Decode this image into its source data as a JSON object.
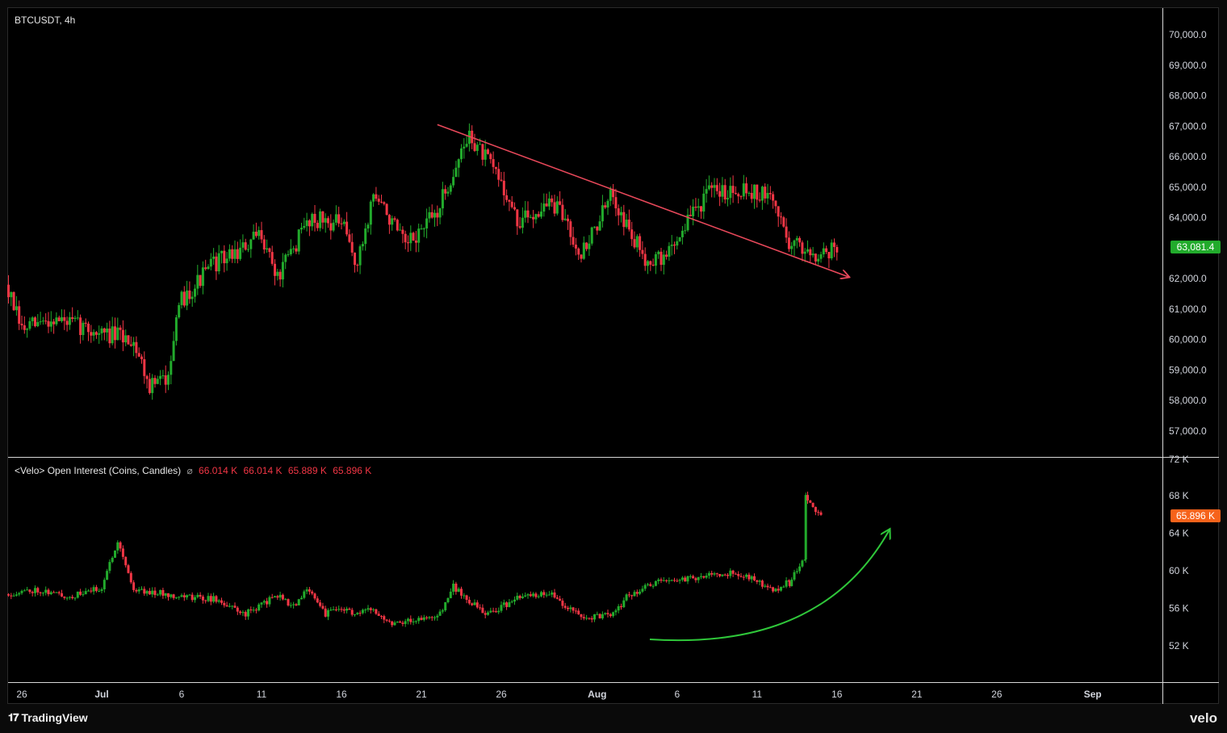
{
  "symbol_label": "BTCUSDT, 4h",
  "oi_label": "<Velo> Open Interest (Coins, Candles)",
  "oi_ohlc": [
    "66.014 K",
    "66.014 K",
    "65.889 K",
    "65.896 K"
  ],
  "price_tag": "63,081.4",
  "oi_tag": "65.896 K",
  "branding": {
    "left": "TradingView",
    "right": "velo"
  },
  "colors": {
    "up": "#089981",
    "up_bright": "#22ab2c",
    "down": "#f23645",
    "trend_line": "#e8485a",
    "curve_arrow": "#2fc73a",
    "price_tag_bg": "#22ab2c",
    "oi_tag_bg": "#f7631b"
  },
  "icons": {
    "eye": "eye-off-icon",
    "tv": "tradingview-logo-icon"
  },
  "chart_data": [
    {
      "type": "candlestick",
      "title": "BTCUSDT, 4h",
      "x_tick_labels": [
        "26",
        "Jul",
        "6",
        "11",
        "16",
        "21",
        "26",
        "Aug",
        "6",
        "11",
        "16",
        "21",
        "26",
        "Sep"
      ],
      "y_tick_labels": [
        "70,000.0",
        "69,000.0",
        "68,000.0",
        "67,000.0",
        "66,000.0",
        "65,000.0",
        "64,000.0",
        "62,000.0",
        "61,000.0",
        "60,000.0",
        "59,000.0",
        "58,000.0",
        "57,000.0"
      ],
      "ylim": [
        56500,
        70600
      ],
      "last_price": 63081.4,
      "series_path": [
        {
          "date": "Jun 25",
          "close": 61800
        },
        {
          "date": "Jun 26",
          "close": 60300
        },
        {
          "date": "Jun 28",
          "close": 60700
        },
        {
          "date": "Jul 1",
          "close": 60200
        },
        {
          "date": "Jul 3",
          "close": 60000
        },
        {
          "date": "Jul 4",
          "close": 58500
        },
        {
          "date": "Jul 5",
          "close": 58700
        },
        {
          "date": "Jul 6",
          "close": 61300
        },
        {
          "date": "Jul 8",
          "close": 62500
        },
        {
          "date": "Jul 10",
          "close": 63000
        },
        {
          "date": "Jul 11",
          "close": 63500
        },
        {
          "date": "Jul 12",
          "close": 62000
        },
        {
          "date": "Jul 14",
          "close": 64000
        },
        {
          "date": "Jul 16",
          "close": 63800
        },
        {
          "date": "Jul 17",
          "close": 62400
        },
        {
          "date": "Jul 18",
          "close": 64800
        },
        {
          "date": "Jul 19",
          "close": 64000
        },
        {
          "date": "Jul 20",
          "close": 63000
        },
        {
          "date": "Jul 22",
          "close": 64200
        },
        {
          "date": "Jul 23",
          "close": 65500
        },
        {
          "date": "Jul 24",
          "close": 66700
        },
        {
          "date": "Jul 26",
          "close": 65200
        },
        {
          "date": "Jul 27",
          "close": 63800
        },
        {
          "date": "Jul 29",
          "close": 64500
        },
        {
          "date": "Jul 30",
          "close": 64000
        },
        {
          "date": "Jul 31",
          "close": 62800
        },
        {
          "date": "Aug 2",
          "close": 64800
        },
        {
          "date": "Aug 3",
          "close": 63500
        },
        {
          "date": "Aug 4",
          "close": 62700
        },
        {
          "date": "Aug 5",
          "close": 62600
        },
        {
          "date": "Aug 6",
          "close": 63300
        },
        {
          "date": "Aug 7",
          "close": 64200
        },
        {
          "date": "Aug 8",
          "close": 64800
        },
        {
          "date": "Aug 10",
          "close": 65000
        },
        {
          "date": "Aug 11",
          "close": 64800
        },
        {
          "date": "Aug 12",
          "close": 64600
        },
        {
          "date": "Aug 13",
          "close": 63200
        },
        {
          "date": "Aug 14",
          "close": 63000
        },
        {
          "date": "Aug 15",
          "close": 62800
        },
        {
          "date": "Aug 16",
          "close": 63081.4
        }
      ],
      "trend_line": {
        "from": {
          "date": "Jul 22",
          "price": 67050
        },
        "to": {
          "date": "Aug 17",
          "price": 62000
        }
      }
    },
    {
      "type": "candlestick",
      "title": "<Velo> Open Interest (Coins, Candles)",
      "y_tick_labels": [
        "72 K",
        "68 K",
        "64 K",
        "60 K",
        "56 K",
        "52 K"
      ],
      "ylim": [
        48000,
        72000
      ],
      "last_value": "65.896 K",
      "series_path": [
        {
          "date": "Jun 25",
          "close": 57500
        },
        {
          "date": "Jun 27",
          "close": 58000
        },
        {
          "date": "Jun 29",
          "close": 57200
        },
        {
          "date": "Jul 1",
          "close": 58200
        },
        {
          "date": "Jul 2",
          "close": 63300
        },
        {
          "date": "Jul 3",
          "close": 58000
        },
        {
          "date": "Jul 6",
          "close": 57300
        },
        {
          "date": "Jul 8",
          "close": 57000
        },
        {
          "date": "Jul 10",
          "close": 55400
        },
        {
          "date": "Jul 12",
          "close": 57400
        },
        {
          "date": "Jul 13",
          "close": 56200
        },
        {
          "date": "Jul 14",
          "close": 58100
        },
        {
          "date": "Jul 15",
          "close": 55400
        },
        {
          "date": "Jul 16",
          "close": 56000
        },
        {
          "date": "Jul 17",
          "close": 55300
        },
        {
          "date": "Jul 18",
          "close": 56000
        },
        {
          "date": "Jul 19",
          "close": 54500
        },
        {
          "date": "Jul 22",
          "close": 55000
        },
        {
          "date": "Jul 23",
          "close": 58300
        },
        {
          "date": "Jul 25",
          "close": 55300
        },
        {
          "date": "Jul 27",
          "close": 57000
        },
        {
          "date": "Jul 29",
          "close": 57700
        },
        {
          "date": "Jul 31",
          "close": 55000
        },
        {
          "date": "Aug 2",
          "close": 55300
        },
        {
          "date": "Aug 3",
          "close": 57500
        },
        {
          "date": "Aug 5",
          "close": 58900
        },
        {
          "date": "Aug 7",
          "close": 59200
        },
        {
          "date": "Aug 9",
          "close": 59800
        },
        {
          "date": "Aug 10",
          "close": 59500
        },
        {
          "date": "Aug 11",
          "close": 59000
        },
        {
          "date": "Aug 12",
          "close": 57800
        },
        {
          "date": "Aug 13",
          "close": 59000
        },
        {
          "date": "Aug 13",
          "close": 58700
        },
        {
          "date": "Aug 14",
          "close": 61500
        },
        {
          "date": "Aug 14",
          "close": 67800
        },
        {
          "date": "Aug 15",
          "close": 65896
        }
      ]
    }
  ]
}
